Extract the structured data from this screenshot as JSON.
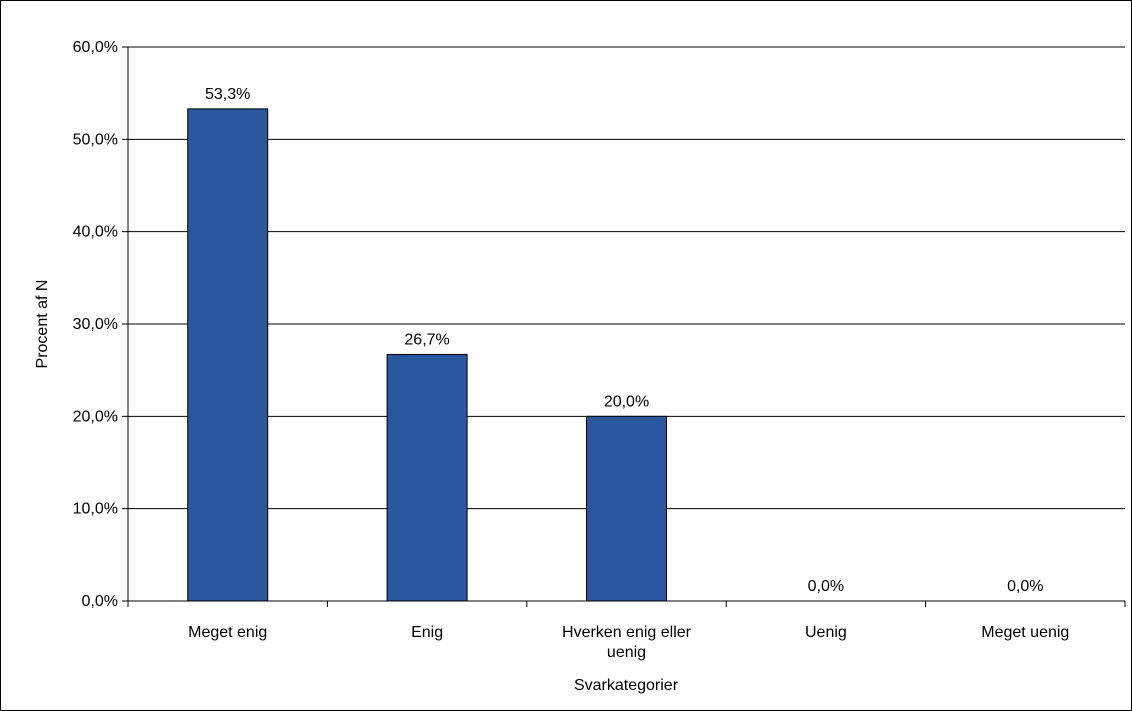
{
  "chart_data": {
    "type": "bar",
    "title": "",
    "xlabel": "Svarkategorier",
    "ylabel": "Procent af N",
    "categories": [
      "Meget enig",
      "Enig",
      "Hverken enig eller uenig",
      "Uenig",
      "Meget uenig"
    ],
    "category_label_lines": [
      [
        "Meget enig"
      ],
      [
        "Enig"
      ],
      [
        "Hverken enig eller",
        "uenig"
      ],
      [
        "Uenig"
      ],
      [
        "Meget uenig"
      ]
    ],
    "values": [
      53.3,
      26.7,
      20.0,
      0.0,
      0.0
    ],
    "data_labels": [
      "53,3%",
      "26,7%",
      "20,0%",
      "0,0%",
      "0,0%"
    ],
    "ylim": [
      0,
      60
    ],
    "yticks": [
      0,
      10,
      20,
      30,
      40,
      50,
      60
    ],
    "ytick_labels": [
      "0,0%",
      "10,0%",
      "20,0%",
      "30,0%",
      "40,0%",
      "50,0%",
      "60,0%"
    ],
    "grid": true,
    "legend": "none",
    "colors": {
      "bar": "#2a579e",
      "bar_edge": "#000000",
      "grid": "#000000",
      "frame": "#000000"
    }
  }
}
